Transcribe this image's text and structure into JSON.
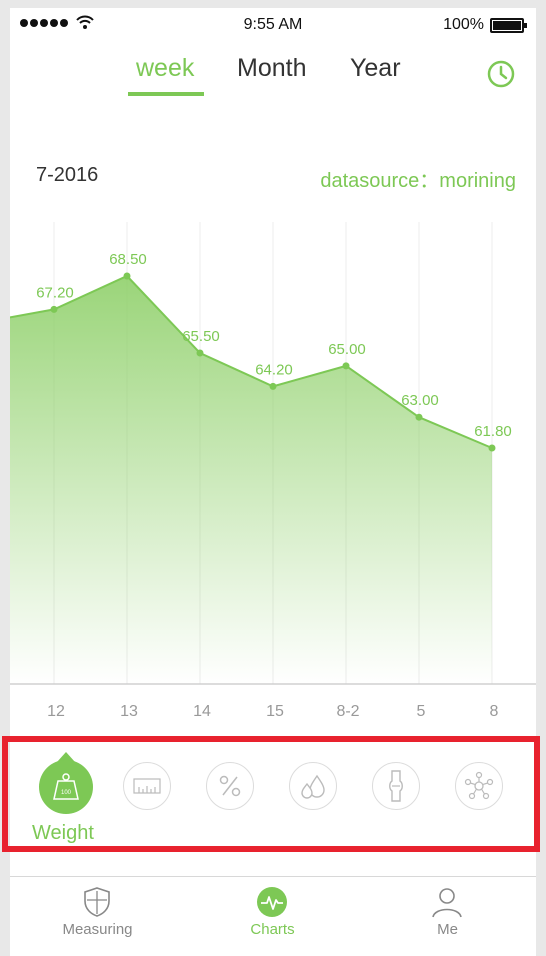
{
  "status_bar": {
    "time": "9:55 AM",
    "battery": "100%"
  },
  "period_tabs": [
    {
      "label": "week",
      "active": true
    },
    {
      "label": "Month",
      "active": false
    },
    {
      "label": "Year",
      "active": false
    }
  ],
  "header": {
    "date": "7-2016",
    "datasource": "datasource：morining"
  },
  "colors": {
    "accent": "#7dc855",
    "highlight": "#e8222e"
  },
  "chart_data": {
    "type": "area",
    "categories": [
      "12",
      "13",
      "14",
      "15",
      "8-2",
      "5",
      "8"
    ],
    "values": [
      67.2,
      68.5,
      65.5,
      64.2,
      65.0,
      63.0,
      61.8
    ],
    "labels": [
      "67.20",
      "68.50",
      "65.50",
      "64.20",
      "65.00",
      "63.00",
      "61.80"
    ],
    "ylim": [
      55,
      70
    ],
    "grid": "vertical"
  },
  "metrics": {
    "active_label": "Weight",
    "items": [
      {
        "icon": "weight-icon",
        "active": true
      },
      {
        "icon": "ruler-icon",
        "active": false
      },
      {
        "icon": "percent-icon",
        "active": false
      },
      {
        "icon": "water-drops-icon",
        "active": false
      },
      {
        "icon": "bone-icon",
        "active": false
      },
      {
        "icon": "molecule-icon",
        "active": false
      }
    ]
  },
  "nav": [
    {
      "label": "Measuring",
      "icon": "shield-icon",
      "active": false
    },
    {
      "label": "Charts",
      "icon": "pulse-icon",
      "active": true
    },
    {
      "label": "Me",
      "icon": "person-icon",
      "active": false
    }
  ]
}
